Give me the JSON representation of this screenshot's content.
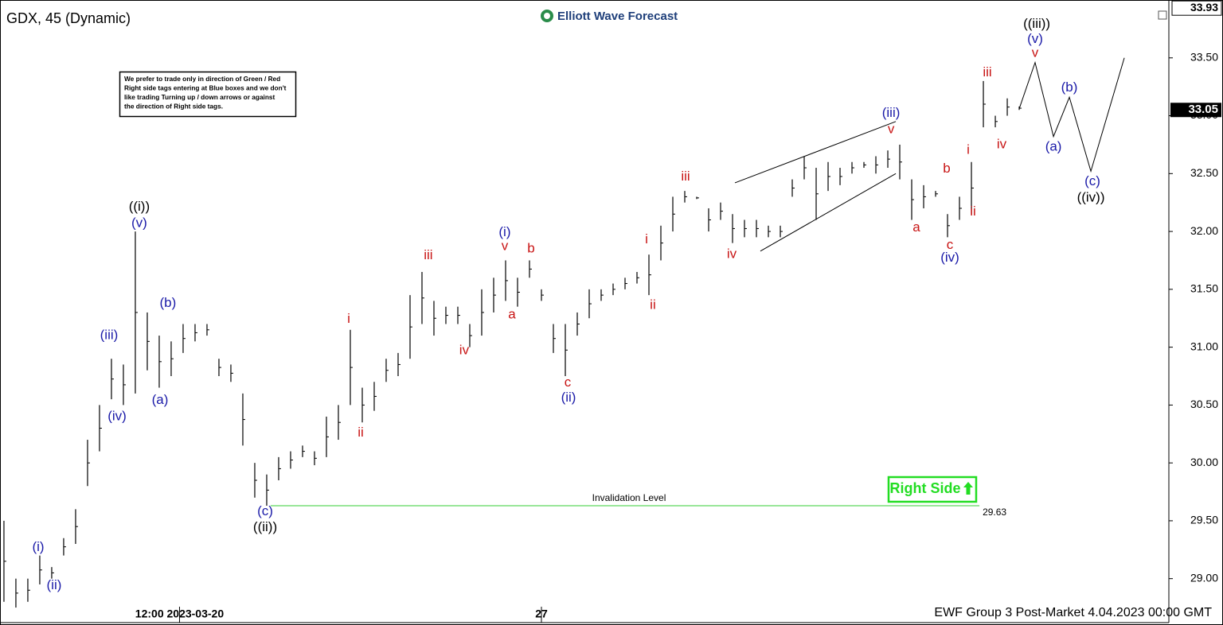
{
  "chart_data": {
    "type": "range-bar",
    "title": "GDX, 45 (Dynamic)",
    "logo": "Elliott Wave Forecast",
    "note": [
      "We prefer to trade only in direction of Green / Red",
      "Right side tags entering at Blue boxes and we don't",
      "like trading Turning up / down arrows or against",
      "the direction of Right side tags."
    ],
    "badge": "Right Side",
    "footer": "EWF Group 3 Post-Market 4.04.2023 00:00 GMT",
    "color": "#000000",
    "xlim": [
      -0.33,
      97.53
    ],
    "ylim": [
      28.62,
      34.0
    ],
    "yticks": [
      {
        "value": 29,
        "label": "29.00"
      },
      {
        "value": 29.5,
        "label": "29.50"
      },
      {
        "value": 30,
        "label": "30.00"
      },
      {
        "value": 30.5,
        "label": "30.50"
      },
      {
        "value": 31,
        "label": "31.00"
      },
      {
        "value": 31.5,
        "label": "31.50"
      },
      {
        "value": 32,
        "label": "32.00"
      },
      {
        "value": 32.5,
        "label": "32.50"
      },
      {
        "value": 33,
        "label": "33.00"
      },
      {
        "value": 33.5,
        "label": "33.50"
      }
    ],
    "xticks": [
      {
        "value": 14.7,
        "label": "12:00 2023-03-20"
      },
      {
        "value": 45,
        "label": "27"
      }
    ],
    "high_label": {
      "value": 33.93,
      "label": "33.93"
    },
    "last_price": {
      "value": 33.05,
      "label": "33.05"
    },
    "highs": [
      29.5,
      29.0,
      29.0,
      29.2,
      29.1,
      29.35,
      29.6,
      30.2,
      30.5,
      30.9,
      30.85,
      32.0,
      31.3,
      31.1,
      31.05,
      31.2,
      31.2,
      31.2,
      30.9,
      30.85,
      30.6,
      30.0,
      29.9,
      30.05,
      30.1,
      30.15,
      30.1,
      30.4,
      30.5,
      31.15,
      30.65,
      30.7,
      30.9,
      30.95,
      31.45,
      31.65,
      31.4,
      31.35,
      31.35,
      31.2,
      31.5,
      31.6,
      31.75,
      31.6,
      31.75,
      31.5,
      31.2,
      31.2,
      31.3,
      31.5,
      31.5,
      31.55,
      31.6,
      31.65,
      31.8,
      32.05,
      32.3,
      32.35,
      32.3,
      32.2,
      32.25,
      32.15,
      32.1,
      32.1,
      32.05,
      32.05,
      32.45,
      32.65,
      32.55,
      32.6,
      32.55,
      32.6,
      32.6,
      32.65,
      32.7,
      32.75,
      32.45,
      32.4,
      32.35,
      32.15,
      32.3,
      32.6,
      33.3,
      33.0,
      33.15,
      33.08
    ],
    "lows": [
      28.8,
      28.75,
      28.8,
      28.95,
      29.0,
      29.2,
      29.3,
      29.8,
      30.1,
      30.55,
      30.5,
      30.6,
      30.8,
      30.65,
      30.75,
      30.95,
      31.05,
      31.1,
      30.75,
      30.7,
      30.15,
      29.7,
      29.63,
      29.85,
      29.95,
      30.05,
      29.98,
      30.05,
      30.2,
      30.5,
      30.35,
      30.45,
      30.7,
      30.75,
      30.9,
      31.2,
      31.1,
      31.2,
      31.2,
      31.0,
      31.1,
      31.3,
      31.4,
      31.35,
      31.6,
      31.4,
      30.95,
      30.75,
      31.1,
      31.25,
      31.4,
      31.45,
      31.5,
      31.55,
      31.45,
      31.75,
      32.0,
      32.25,
      32.28,
      32.0,
      32.1,
      31.9,
      31.95,
      31.95,
      31.95,
      31.95,
      32.3,
      32.45,
      32.1,
      32.35,
      32.4,
      32.5,
      32.55,
      32.5,
      32.55,
      32.45,
      32.1,
      32.2,
      32.3,
      31.95,
      32.1,
      32.15,
      32.9,
      32.9,
      33.0,
      33.05
    ],
    "projection": {
      "x": [
        85,
        86.33,
        87.87,
        89.2,
        91,
        93.8
      ],
      "y": [
        33.06,
        33.46,
        32.82,
        33.16,
        32.52,
        33.5
      ]
    },
    "trendlines": [
      {
        "x": [
          61.2,
          74.67
        ],
        "y": [
          32.42,
          32.95
        ]
      },
      {
        "x": [
          63.33,
          74.67
        ],
        "y": [
          31.83,
          32.5
        ]
      }
    ],
    "invalidation": {
      "x": [
        22.33,
        81.67
      ],
      "value": 29.63,
      "label": "Invalidation Level",
      "value_label": "29.63",
      "color": "#33cc33"
    },
    "annotations": [
      {
        "text": "((i))",
        "color": "#000000",
        "x": 11.33,
        "y": 32.21
      },
      {
        "text": "(v)",
        "color": "#1a1aa8",
        "x": 11.33,
        "y": 32.07
      },
      {
        "text": "(i)",
        "color": "#1a1aa8",
        "x": 2.87,
        "y": 29.27
      },
      {
        "text": "(ii)",
        "color": "#1a1aa8",
        "x": 4.2,
        "y": 28.94
      },
      {
        "text": "(iii)",
        "color": "#1a1aa8",
        "x": 8.8,
        "y": 31.1
      },
      {
        "text": "(iv)",
        "color": "#1a1aa8",
        "x": 9.47,
        "y": 30.4
      },
      {
        "text": "(b)",
        "color": "#1a1aa8",
        "x": 13.73,
        "y": 31.38
      },
      {
        "text": "(a)",
        "color": "#1a1aa8",
        "x": 13.07,
        "y": 30.54
      },
      {
        "text": "(c)",
        "color": "#1a1aa8",
        "x": 21.87,
        "y": 29.58
      },
      {
        "text": "((ii))",
        "color": "#000000",
        "x": 21.87,
        "y": 29.44
      },
      {
        "text": "i",
        "color": "#c81414",
        "x": 28.87,
        "y": 31.24
      },
      {
        "text": "ii",
        "color": "#c81414",
        "x": 29.87,
        "y": 30.26
      },
      {
        "text": "iii",
        "color": "#c81414",
        "x": 35.53,
        "y": 31.79
      },
      {
        "text": "iv",
        "color": "#c81414",
        "x": 38.53,
        "y": 30.97
      },
      {
        "text": "(i)",
        "color": "#1a1aa8",
        "x": 41.93,
        "y": 31.99
      },
      {
        "text": "v",
        "color": "#c81414",
        "x": 41.93,
        "y": 31.87
      },
      {
        "text": "b",
        "color": "#c81414",
        "x": 44.13,
        "y": 31.85
      },
      {
        "text": "a",
        "color": "#c81414",
        "x": 42.53,
        "y": 31.28
      },
      {
        "text": "c",
        "color": "#c81414",
        "x": 47.2,
        "y": 30.69
      },
      {
        "text": "(ii)",
        "color": "#1a1aa8",
        "x": 47.27,
        "y": 30.56
      },
      {
        "text": "i",
        "color": "#c81414",
        "x": 53.8,
        "y": 31.93
      },
      {
        "text": "ii",
        "color": "#c81414",
        "x": 54.33,
        "y": 31.36
      },
      {
        "text": "iii",
        "color": "#c81414",
        "x": 57.07,
        "y": 32.47
      },
      {
        "text": "iv",
        "color": "#c81414",
        "x": 60.93,
        "y": 31.8
      },
      {
        "text": "(iii)",
        "color": "#1a1aa8",
        "x": 74.27,
        "y": 33.02
      },
      {
        "text": "v",
        "color": "#c81414",
        "x": 74.27,
        "y": 32.88
      },
      {
        "text": "a",
        "color": "#c81414",
        "x": 76.4,
        "y": 32.03
      },
      {
        "text": "b",
        "color": "#c81414",
        "x": 78.93,
        "y": 32.54
      },
      {
        "text": "c",
        "color": "#c81414",
        "x": 79.2,
        "y": 31.88
      },
      {
        "text": "(iv)",
        "color": "#1a1aa8",
        "x": 79.2,
        "y": 31.77
      },
      {
        "text": "i",
        "color": "#c81414",
        "x": 80.73,
        "y": 32.7
      },
      {
        "text": "ii",
        "color": "#c81414",
        "x": 81.13,
        "y": 32.17
      },
      {
        "text": "iii",
        "color": "#c81414",
        "x": 82.33,
        "y": 33.37
      },
      {
        "text": "iv",
        "color": "#c81414",
        "x": 83.53,
        "y": 32.75
      },
      {
        "text": "((iii))",
        "color": "#000000",
        "x": 86.47,
        "y": 33.79
      },
      {
        "text": "(v)",
        "color": "#1a1aa8",
        "x": 86.33,
        "y": 33.66
      },
      {
        "text": "v",
        "color": "#c81414",
        "x": 86.33,
        "y": 33.54
      },
      {
        "text": "(a)",
        "color": "#1a1aa8",
        "x": 87.87,
        "y": 32.73
      },
      {
        "text": "(b)",
        "color": "#1a1aa8",
        "x": 89.2,
        "y": 33.24
      },
      {
        "text": "(c)",
        "color": "#1a1aa8",
        "x": 91.13,
        "y": 32.43
      },
      {
        "text": "((iv))",
        "color": "#000000",
        "x": 91,
        "y": 32.29
      }
    ]
  }
}
